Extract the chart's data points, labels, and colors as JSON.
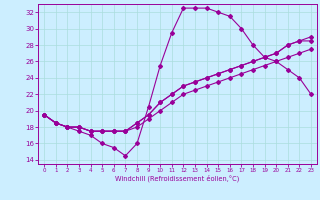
{
  "background_color": "#cceeff",
  "grid_color": "#aadddd",
  "line_color": "#990099",
  "xlim": [
    -0.5,
    23.5
  ],
  "ylim": [
    13.5,
    33
  ],
  "xticks": [
    0,
    1,
    2,
    3,
    4,
    5,
    6,
    7,
    8,
    9,
    10,
    11,
    12,
    13,
    14,
    15,
    16,
    17,
    18,
    19,
    20,
    21,
    22,
    23
  ],
  "yticks": [
    14,
    16,
    18,
    20,
    22,
    24,
    26,
    28,
    30,
    32
  ],
  "xlabel": "Windchill (Refroidissement éolien,°C)",
  "line1_x": [
    0,
    1,
    2,
    3,
    4,
    5,
    6,
    7,
    8,
    9,
    10,
    11,
    12,
    13,
    14,
    15,
    16,
    17,
    18,
    19,
    20,
    21,
    22,
    23
  ],
  "line1_y": [
    19.5,
    18.5,
    18.0,
    17.5,
    17.0,
    16.0,
    15.5,
    14.5,
    16.0,
    20.5,
    25.5,
    29.5,
    32.5,
    32.5,
    32.5,
    32.0,
    31.5,
    30.0,
    28.0,
    26.5,
    26.0,
    25.0,
    24.0,
    22.0
  ],
  "line2_x": [
    0,
    1,
    2,
    3,
    4,
    5,
    6,
    7,
    8,
    9,
    10,
    11,
    12,
    13,
    14,
    15,
    16,
    17,
    18,
    19,
    20,
    21,
    22,
    23
  ],
  "line2_y": [
    19.5,
    18.5,
    18.0,
    18.0,
    17.5,
    17.5,
    17.5,
    17.5,
    18.5,
    19.5,
    21.0,
    22.0,
    23.0,
    23.5,
    24.0,
    24.5,
    25.0,
    25.5,
    26.0,
    26.5,
    27.0,
    28.0,
    28.5,
    29.0
  ],
  "line3_x": [
    0,
    1,
    2,
    3,
    4,
    5,
    6,
    7,
    8,
    9,
    10,
    11,
    12,
    13,
    14,
    15,
    16,
    17,
    18,
    19,
    20,
    21,
    22,
    23
  ],
  "line3_y": [
    19.5,
    18.5,
    18.0,
    18.0,
    17.5,
    17.5,
    17.5,
    17.5,
    18.5,
    19.5,
    21.0,
    22.0,
    23.0,
    23.5,
    24.0,
    24.5,
    25.0,
    25.5,
    26.0,
    26.5,
    27.0,
    28.0,
    28.5,
    28.5
  ],
  "line4_x": [
    0,
    1,
    2,
    3,
    4,
    5,
    6,
    7,
    8,
    9,
    10,
    11,
    12,
    13,
    14,
    15,
    16,
    17,
    18,
    19,
    20,
    21,
    22,
    23
  ],
  "line4_y": [
    19.5,
    18.5,
    18.0,
    18.0,
    17.5,
    17.5,
    17.5,
    17.5,
    18.0,
    19.0,
    20.0,
    21.0,
    22.0,
    22.5,
    23.0,
    23.5,
    24.0,
    24.5,
    25.0,
    25.5,
    26.0,
    26.5,
    27.0,
    27.5
  ]
}
